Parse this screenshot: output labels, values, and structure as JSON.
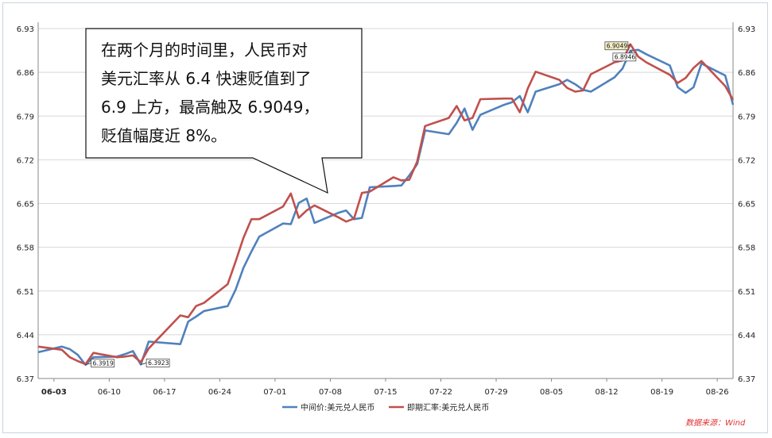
{
  "chart_data": {
    "type": "line",
    "ylim": [
      6.37,
      6.93
    ],
    "y_ticks": [
      "6.93",
      "6.86",
      "6.79",
      "6.72",
      "6.65",
      "6.58",
      "6.51",
      "6.44",
      "6.37"
    ],
    "x_tick_labels": [
      "06-03",
      "06-10",
      "06-17",
      "06-24",
      "07-01",
      "07-08",
      "07-15",
      "07-22",
      "07-29",
      "08-05",
      "08-12",
      "08-19",
      "08-26"
    ],
    "x_range": [
      "2018-06-01",
      "2018-08-28"
    ],
    "grid": true,
    "legend_position": "bottom",
    "series": [
      {
        "name": "中间价:美元兑人民币",
        "color": "#4f81bd",
        "points": [
          [
            "2018-06-01",
            6.412
          ],
          [
            "2018-06-04",
            6.421
          ],
          [
            "2018-06-05",
            6.417
          ],
          [
            "2018-06-06",
            6.408
          ],
          [
            "2018-06-07",
            6.3919
          ],
          [
            "2018-06-08",
            6.404
          ],
          [
            "2018-06-11",
            6.405
          ],
          [
            "2018-06-12",
            6.409
          ],
          [
            "2018-06-13",
            6.414
          ],
          [
            "2018-06-14",
            6.3923
          ],
          [
            "2018-06-15",
            6.4291
          ],
          [
            "2018-06-19",
            6.425
          ],
          [
            "2018-06-20",
            6.461
          ],
          [
            "2018-06-21",
            6.469
          ],
          [
            "2018-06-22",
            6.478
          ],
          [
            "2018-06-25",
            6.486
          ],
          [
            "2018-06-26",
            6.512
          ],
          [
            "2018-06-27",
            6.547
          ],
          [
            "2018-06-28",
            6.573
          ],
          [
            "2018-06-29",
            6.597
          ],
          [
            "2018-07-02",
            6.618
          ],
          [
            "2018-07-03",
            6.617
          ],
          [
            "2018-07-04",
            6.651
          ],
          [
            "2018-07-05",
            6.658
          ],
          [
            "2018-07-06",
            6.619
          ],
          [
            "2018-07-09",
            6.635
          ],
          [
            "2018-07-10",
            6.639
          ],
          [
            "2018-07-11",
            6.625
          ],
          [
            "2018-07-12",
            6.627
          ],
          [
            "2018-07-13",
            6.676
          ],
          [
            "2018-07-16",
            6.678
          ],
          [
            "2018-07-17",
            6.679
          ],
          [
            "2018-07-18",
            6.695
          ],
          [
            "2018-07-19",
            6.713
          ],
          [
            "2018-07-20",
            6.767
          ],
          [
            "2018-07-23",
            6.761
          ],
          [
            "2018-07-24",
            6.779
          ],
          [
            "2018-07-25",
            6.802
          ],
          [
            "2018-07-26",
            6.768
          ],
          [
            "2018-07-27",
            6.792
          ],
          [
            "2018-07-30",
            6.808
          ],
          [
            "2018-07-31",
            6.812
          ],
          [
            "2018-08-01",
            6.822
          ],
          [
            "2018-08-02",
            6.796
          ],
          [
            "2018-08-03",
            6.829
          ],
          [
            "2018-08-06",
            6.841
          ],
          [
            "2018-08-07",
            6.848
          ],
          [
            "2018-08-08",
            6.841
          ],
          [
            "2018-08-09",
            6.832
          ],
          [
            "2018-08-10",
            6.829
          ],
          [
            "2018-08-13",
            6.852
          ],
          [
            "2018-08-14",
            6.866
          ],
          [
            "2018-08-15",
            6.8946
          ],
          [
            "2018-08-16",
            6.896
          ],
          [
            "2018-08-17",
            6.889
          ],
          [
            "2018-08-20",
            6.871
          ],
          [
            "2018-08-21",
            6.836
          ],
          [
            "2018-08-22",
            6.827
          ],
          [
            "2018-08-23",
            6.836
          ],
          [
            "2018-08-24",
            6.874
          ],
          [
            "2018-08-27",
            6.855
          ],
          [
            "2018-08-28",
            6.808
          ]
        ]
      },
      {
        "name": "即期汇率:美元兑人民币",
        "color": "#c0504d",
        "points": [
          [
            "2018-06-01",
            6.421
          ],
          [
            "2018-06-04",
            6.416
          ],
          [
            "2018-06-05",
            6.404
          ],
          [
            "2018-06-06",
            6.398
          ],
          [
            "2018-06-07",
            6.393
          ],
          [
            "2018-06-08",
            6.411
          ],
          [
            "2018-06-11",
            6.404
          ],
          [
            "2018-06-12",
            6.405
          ],
          [
            "2018-06-13",
            6.407
          ],
          [
            "2018-06-14",
            6.396
          ],
          [
            "2018-06-15",
            6.418
          ],
          [
            "2018-06-19",
            6.471
          ],
          [
            "2018-06-20",
            6.468
          ],
          [
            "2018-06-21",
            6.486
          ],
          [
            "2018-06-22",
            6.491
          ],
          [
            "2018-06-25",
            6.521
          ],
          [
            "2018-06-26",
            6.557
          ],
          [
            "2018-06-27",
            6.595
          ],
          [
            "2018-06-28",
            6.625
          ],
          [
            "2018-06-29",
            6.625
          ],
          [
            "2018-07-02",
            6.645
          ],
          [
            "2018-07-03",
            6.666
          ],
          [
            "2018-07-04",
            6.627
          ],
          [
            "2018-07-05",
            6.639
          ],
          [
            "2018-07-06",
            6.647
          ],
          [
            "2018-07-09",
            6.628
          ],
          [
            "2018-07-10",
            6.621
          ],
          [
            "2018-07-11",
            6.626
          ],
          [
            "2018-07-12",
            6.667
          ],
          [
            "2018-07-13",
            6.669
          ],
          [
            "2018-07-16",
            6.692
          ],
          [
            "2018-07-17",
            6.687
          ],
          [
            "2018-07-18",
            6.688
          ],
          [
            "2018-07-19",
            6.717
          ],
          [
            "2018-07-20",
            6.774
          ],
          [
            "2018-07-23",
            6.787
          ],
          [
            "2018-07-24",
            6.806
          ],
          [
            "2018-07-25",
            6.783
          ],
          [
            "2018-07-26",
            6.787
          ],
          [
            "2018-07-27",
            6.817
          ],
          [
            "2018-07-30",
            6.818
          ],
          [
            "2018-07-31",
            6.818
          ],
          [
            "2018-08-01",
            6.796
          ],
          [
            "2018-08-02",
            6.834
          ],
          [
            "2018-08-03",
            6.861
          ],
          [
            "2018-08-06",
            6.848
          ],
          [
            "2018-08-07",
            6.835
          ],
          [
            "2018-08-08",
            6.829
          ],
          [
            "2018-08-09",
            6.831
          ],
          [
            "2018-08-10",
            6.857
          ],
          [
            "2018-08-13",
            6.876
          ],
          [
            "2018-08-14",
            6.879
          ],
          [
            "2018-08-15",
            6.9049
          ],
          [
            "2018-08-16",
            6.885
          ],
          [
            "2018-08-17",
            6.876
          ],
          [
            "2018-08-20",
            6.856
          ],
          [
            "2018-08-21",
            6.843
          ],
          [
            "2018-08-22",
            6.851
          ],
          [
            "2018-08-23",
            6.867
          ],
          [
            "2018-08-24",
            6.878
          ],
          [
            "2018-08-27",
            6.838
          ],
          [
            "2018-08-28",
            6.816
          ]
        ]
      }
    ],
    "annotations": [
      {
        "label": "6.3919",
        "date": "2018-06-07",
        "value": 6.3919,
        "series": 0
      },
      {
        "label": "6.3923",
        "date": "2018-06-14",
        "value": 6.3923,
        "series": 0
      },
      {
        "label": "6.9049",
        "date": "2018-08-15",
        "value": 6.9049,
        "series": 1
      },
      {
        "label": "6.8946",
        "date": "2018-08-15",
        "value": 6.8946,
        "series": 0
      }
    ],
    "callout_lines": [
      "在两个月的时间里，人民币对",
      "美元汇率从 6.4 快速贬值到了",
      "6.9 上方，最高触及 6.9049，",
      "贬值幅度近 8%。"
    ],
    "source_text": "数据来源：Wind"
  }
}
